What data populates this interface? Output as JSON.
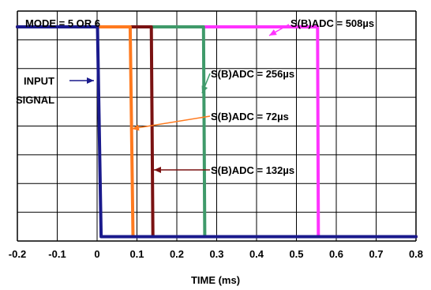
{
  "chart_data": {
    "type": "line",
    "title": "",
    "xlabel": "TIME (ms)",
    "ylabel": "",
    "xlim": [
      -0.2,
      0.8
    ],
    "ylim": [
      0,
      8
    ],
    "grid": true,
    "x_ticks": [
      "-0.2",
      "-0.1",
      "0",
      "0.1",
      "0.2",
      "0.3",
      "0.4",
      "0.5",
      "0.6",
      "0.7",
      "0.8"
    ],
    "colors": {
      "input": "#1a1a8c",
      "t508": "#ff33ff",
      "t256": "#3f9a6a",
      "t132": "#7a1212",
      "t72": "#ff7a1f"
    },
    "series": [
      {
        "key": "t508",
        "x": [
          -0.2,
          0.553,
          0.555,
          0.8
        ],
        "y": [
          7.45,
          7.45,
          0.15,
          0.15
        ]
      },
      {
        "key": "t256",
        "x": [
          -0.2,
          0.267,
          0.27,
          0.8
        ],
        "y": [
          7.45,
          7.45,
          0.15,
          0.15
        ]
      },
      {
        "key": "t132",
        "x": [
          -0.2,
          0.136,
          0.14,
          0.8
        ],
        "y": [
          7.45,
          7.45,
          0.15,
          0.15
        ]
      },
      {
        "key": "t72",
        "x": [
          -0.2,
          0.083,
          0.09,
          0.8
        ],
        "y": [
          7.45,
          7.45,
          0.15,
          0.15
        ]
      },
      {
        "key": "input",
        "x": [
          -0.2,
          0.001,
          0.01,
          0.8
        ],
        "y": [
          7.45,
          7.45,
          0.15,
          0.15
        ]
      }
    ],
    "annotations": {
      "mode": "MODE = 5 OR 6",
      "input_line1": "INPUT",
      "input_line2": "SIGNAL",
      "s508": "S(B)ADC = 508µs",
      "s256": "S(B)ADC = 256µs",
      "s72": "S(B)ADC = 72µs",
      "s132": "S(B)ADC = 132µs"
    }
  }
}
